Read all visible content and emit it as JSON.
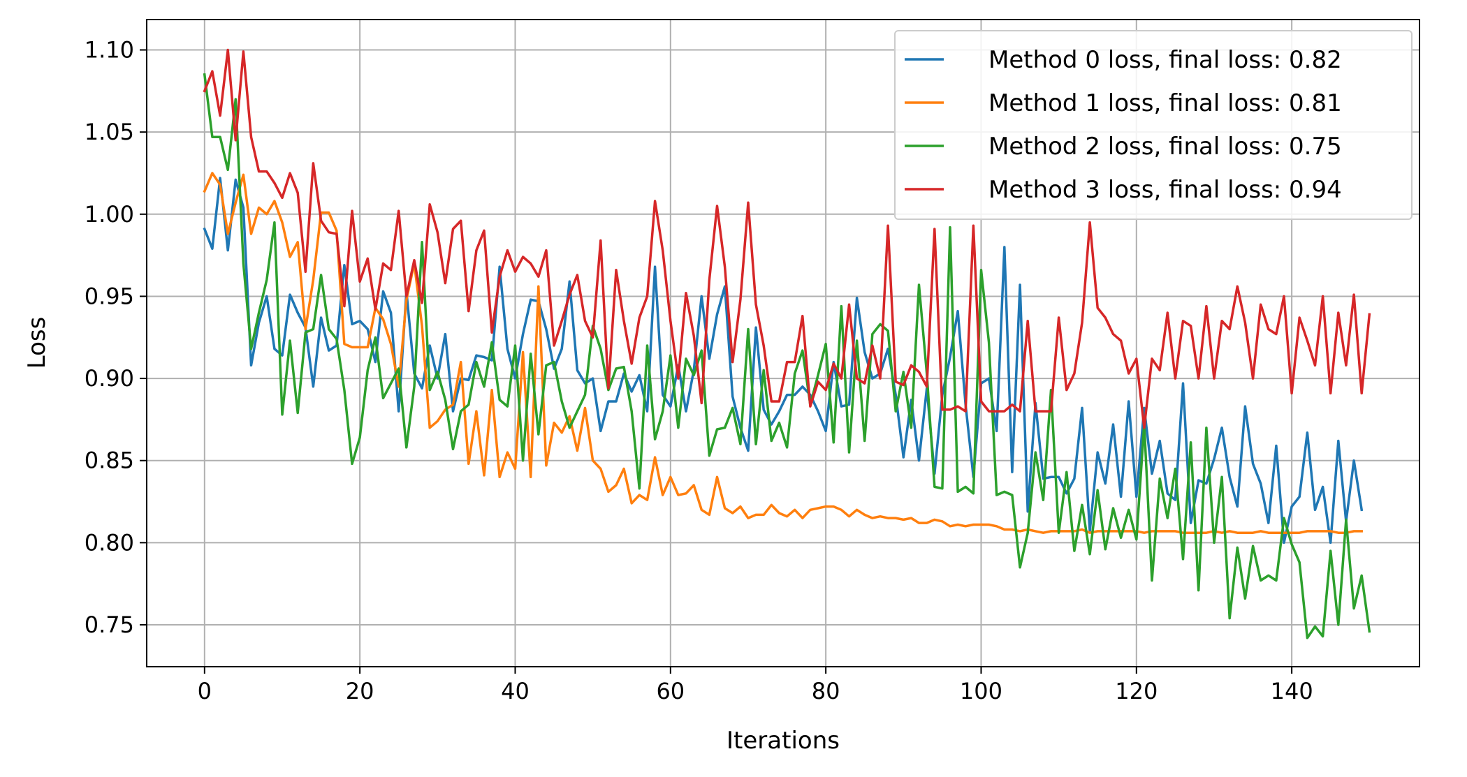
{
  "chart_data": {
    "type": "line",
    "title": "",
    "xlabel": "Iterations",
    "ylabel": "Loss",
    "xlim": [
      -7.45,
      156.45
    ],
    "ylim": [
      0.7245,
      1.1185
    ],
    "xticks": [
      0,
      20,
      40,
      60,
      80,
      100,
      120,
      140
    ],
    "xtick_labels": [
      "0",
      "20",
      "40",
      "60",
      "80",
      "100",
      "120",
      "140"
    ],
    "yticks": [
      0.75,
      0.8,
      0.85,
      0.9,
      0.95,
      1.0,
      1.05,
      1.1
    ],
    "ytick_labels": [
      "0.75",
      "0.80",
      "0.85",
      "0.90",
      "0.95",
      "1.00",
      "1.05",
      "1.10"
    ],
    "grid": true,
    "legend_position": "top-right",
    "x_start": 0,
    "x_step": 1,
    "series": [
      {
        "name": "Method 0 loss, final loss: 0.82",
        "color": "#1f77b4",
        "values": [
          0.991,
          0.979,
          1.022,
          0.978,
          1.021,
          1.004,
          0.908,
          0.934,
          0.95,
          0.918,
          0.914,
          0.951,
          0.94,
          0.931,
          0.895,
          0.937,
          0.917,
          0.92,
          0.969,
          0.933,
          0.935,
          0.93,
          0.91,
          0.953,
          0.94,
          0.88,
          0.953,
          0.903,
          0.894,
          0.92,
          0.9,
          0.927,
          0.88,
          0.9,
          0.899,
          0.914,
          0.913,
          0.911,
          0.968,
          0.918,
          0.9,
          0.927,
          0.948,
          0.947,
          0.93,
          0.906,
          0.918,
          0.959,
          0.905,
          0.897,
          0.9,
          0.868,
          0.886,
          0.886,
          0.903,
          0.892,
          0.902,
          0.88,
          0.968,
          0.89,
          0.883,
          0.908,
          0.88,
          0.905,
          0.95,
          0.912,
          0.939,
          0.956,
          0.889,
          0.87,
          0.856,
          0.931,
          0.881,
          0.872,
          0.88,
          0.89,
          0.89,
          0.895,
          0.89,
          0.88,
          0.868,
          0.91,
          0.883,
          0.884,
          0.949,
          0.916,
          0.9,
          0.903,
          0.918,
          0.89,
          0.852,
          0.887,
          0.85,
          0.894,
          0.842,
          0.89,
          0.913,
          0.941,
          0.884,
          0.84,
          0.897,
          0.9,
          0.868,
          0.98,
          0.843,
          0.957,
          0.819,
          0.885,
          0.839,
          0.84,
          0.84,
          0.83,
          0.839,
          0.882,
          0.807,
          0.855,
          0.836,
          0.872,
          0.828,
          0.886,
          0.828,
          0.882,
          0.842,
          0.862,
          0.83,
          0.826,
          0.897,
          0.812,
          0.838,
          0.836,
          0.851,
          0.87,
          0.84,
          0.822,
          0.883,
          0.848,
          0.836,
          0.812,
          0.859,
          0.8,
          0.822,
          0.828,
          0.867,
          0.82,
          0.834,
          0.8,
          0.862,
          0.813,
          0.85,
          0.82
        ]
      },
      {
        "name": "Method 1 loss, final loss: 0.81",
        "color": "#ff7f0e",
        "values": [
          1.014,
          1.025,
          1.018,
          0.988,
          1.007,
          1.024,
          0.988,
          1.004,
          1.0,
          1.008,
          0.995,
          0.974,
          0.983,
          0.93,
          0.96,
          1.001,
          1.001,
          0.99,
          0.921,
          0.919,
          0.919,
          0.919,
          0.943,
          0.936,
          0.921,
          0.895,
          0.948,
          0.97,
          0.932,
          0.87,
          0.874,
          0.881,
          0.884,
          0.91,
          0.848,
          0.88,
          0.841,
          0.893,
          0.84,
          0.855,
          0.845,
          0.916,
          0.84,
          0.956,
          0.847,
          0.873,
          0.867,
          0.877,
          0.856,
          0.882,
          0.85,
          0.845,
          0.831,
          0.835,
          0.845,
          0.824,
          0.829,
          0.826,
          0.852,
          0.829,
          0.84,
          0.829,
          0.83,
          0.835,
          0.82,
          0.817,
          0.84,
          0.821,
          0.818,
          0.822,
          0.815,
          0.817,
          0.817,
          0.823,
          0.818,
          0.816,
          0.82,
          0.815,
          0.82,
          0.821,
          0.822,
          0.822,
          0.82,
          0.816,
          0.82,
          0.817,
          0.815,
          0.816,
          0.815,
          0.815,
          0.814,
          0.815,
          0.812,
          0.812,
          0.814,
          0.813,
          0.81,
          0.811,
          0.81,
          0.811,
          0.811,
          0.811,
          0.81,
          0.808,
          0.808,
          0.807,
          0.808,
          0.807,
          0.806,
          0.807,
          0.807,
          0.807,
          0.807,
          0.808,
          0.806,
          0.807,
          0.807,
          0.807,
          0.807,
          0.807,
          0.807,
          0.806,
          0.807,
          0.807,
          0.807,
          0.807,
          0.806,
          0.806,
          0.806,
          0.806,
          0.807,
          0.806,
          0.807,
          0.806,
          0.806,
          0.806,
          0.807,
          0.806,
          0.806,
          0.806,
          0.806,
          0.806,
          0.807,
          0.807,
          0.807,
          0.807,
          0.806,
          0.806,
          0.807,
          0.807
        ]
      },
      {
        "name": "Method 2 loss, final loss: 0.75",
        "color": "#2ca02c",
        "values": [
          1.085,
          1.047,
          1.047,
          1.027,
          1.07,
          0.97,
          0.918,
          0.94,
          0.96,
          0.995,
          0.878,
          0.923,
          0.879,
          0.928,
          0.93,
          0.963,
          0.93,
          0.924,
          0.893,
          0.848,
          0.864,
          0.905,
          0.925,
          0.888,
          0.897,
          0.906,
          0.858,
          0.895,
          0.983,
          0.893,
          0.904,
          0.887,
          0.857,
          0.88,
          0.884,
          0.91,
          0.895,
          0.922,
          0.887,
          0.883,
          0.92,
          0.85,
          0.915,
          0.866,
          0.908,
          0.91,
          0.886,
          0.87,
          0.88,
          0.89,
          0.932,
          0.918,
          0.893,
          0.906,
          0.907,
          0.88,
          0.833,
          0.92,
          0.863,
          0.88,
          0.914,
          0.87,
          0.912,
          0.902,
          0.917,
          0.853,
          0.869,
          0.87,
          0.882,
          0.86,
          0.93,
          0.86,
          0.905,
          0.862,
          0.873,
          0.858,
          0.903,
          0.917,
          0.884,
          0.902,
          0.921,
          0.861,
          0.944,
          0.855,
          0.923,
          0.862,
          0.927,
          0.933,
          0.929,
          0.88,
          0.904,
          0.87,
          0.957,
          0.903,
          0.834,
          0.833,
          0.992,
          0.831,
          0.834,
          0.83,
          0.966,
          0.922,
          0.829,
          0.831,
          0.829,
          0.785,
          0.806,
          0.855,
          0.826,
          0.893,
          0.806,
          0.843,
          0.795,
          0.823,
          0.793,
          0.832,
          0.796,
          0.821,
          0.803,
          0.82,
          0.802,
          0.872,
          0.777,
          0.839,
          0.815,
          0.845,
          0.79,
          0.861,
          0.771,
          0.87,
          0.8,
          0.84,
          0.754,
          0.797,
          0.766,
          0.798,
          0.777,
          0.78,
          0.777,
          0.815,
          0.799,
          0.788,
          0.742,
          0.749,
          0.743,
          0.795,
          0.75,
          0.814,
          0.76,
          0.78,
          0.746
        ]
      },
      {
        "name": "Method 3 loss, final loss: 0.94",
        "color": "#d62728",
        "values": [
          1.075,
          1.087,
          1.06,
          1.1,
          1.045,
          1.099,
          1.047,
          1.026,
          1.026,
          1.019,
          1.01,
          1.025,
          1.013,
          0.965,
          1.031,
          0.996,
          0.989,
          0.988,
          0.944,
          1.002,
          0.959,
          0.973,
          0.942,
          0.97,
          0.966,
          1.002,
          0.95,
          0.972,
          0.946,
          1.006,
          0.989,
          0.958,
          0.991,
          0.996,
          0.941,
          0.978,
          0.99,
          0.928,
          0.962,
          0.978,
          0.965,
          0.974,
          0.97,
          0.962,
          0.978,
          0.92,
          0.935,
          0.951,
          0.963,
          0.935,
          0.925,
          0.984,
          0.894,
          0.966,
          0.935,
          0.909,
          0.937,
          0.95,
          1.008,
          0.978,
          0.935,
          0.9,
          0.952,
          0.926,
          0.885,
          0.96,
          1.005,
          0.968,
          0.91,
          0.948,
          1.007,
          0.945,
          0.92,
          0.886,
          0.886,
          0.91,
          0.91,
          0.938,
          0.883,
          0.898,
          0.893,
          0.909,
          0.9,
          0.945,
          0.9,
          0.897,
          0.92,
          0.9,
          0.993,
          0.898,
          0.896,
          0.908,
          0.904,
          0.895,
          0.991,
          0.881,
          0.881,
          0.883,
          0.88,
          0.993,
          0.886,
          0.88,
          0.88,
          0.88,
          0.884,
          0.88,
          0.935,
          0.88,
          0.88,
          0.88,
          0.937,
          0.893,
          0.903,
          0.934,
          0.995,
          0.943,
          0.937,
          0.927,
          0.923,
          0.903,
          0.912,
          0.87,
          0.912,
          0.905,
          0.94,
          0.9,
          0.935,
          0.932,
          0.9,
          0.944,
          0.9,
          0.935,
          0.93,
          0.956,
          0.934,
          0.9,
          0.945,
          0.93,
          0.927,
          0.95,
          0.891,
          0.937,
          0.923,
          0.908,
          0.95,
          0.891,
          0.94,
          0.908,
          0.951,
          0.891,
          0.939
        ]
      }
    ]
  }
}
